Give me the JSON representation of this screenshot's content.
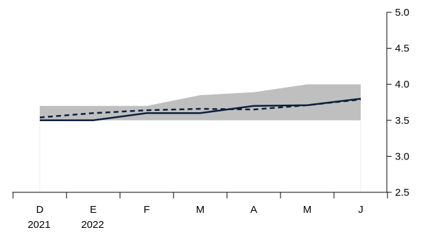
{
  "chart_data": {
    "type": "line",
    "title": "",
    "xlabel": "",
    "ylabel": "",
    "categories": [
      "D",
      "E",
      "F",
      "M",
      "A",
      "M",
      "J"
    ],
    "category_sublabels": [
      "2021",
      "2022",
      "",
      "",
      "",
      "",
      ""
    ],
    "ylim": [
      2.5,
      5.0
    ],
    "yticks": [
      2.5,
      3.0,
      3.5,
      4.0,
      4.5,
      5.0
    ],
    "ytick_labels": [
      "2.5",
      "3.0",
      "3.5",
      "4.0",
      "4.5",
      "5.0"
    ],
    "y_axis_side": "right",
    "grid": false,
    "legend": "none",
    "band": {
      "lower": [
        3.5,
        3.5,
        3.5,
        3.5,
        3.5,
        3.5,
        3.5
      ],
      "upper": [
        3.7,
        3.7,
        3.7,
        3.85,
        3.89,
        4.0,
        4.0
      ],
      "color": "#bfbfbf"
    },
    "series": [
      {
        "values": [
          3.5,
          3.5,
          3.6,
          3.6,
          3.7,
          3.71,
          3.8
        ],
        "color": "#0d1f3c",
        "style": "solid"
      },
      {
        "values": [
          3.54,
          3.6,
          3.64,
          3.66,
          3.65,
          3.71,
          3.79
        ],
        "color": "#0d1f3c",
        "style": "dashed"
      }
    ]
  }
}
